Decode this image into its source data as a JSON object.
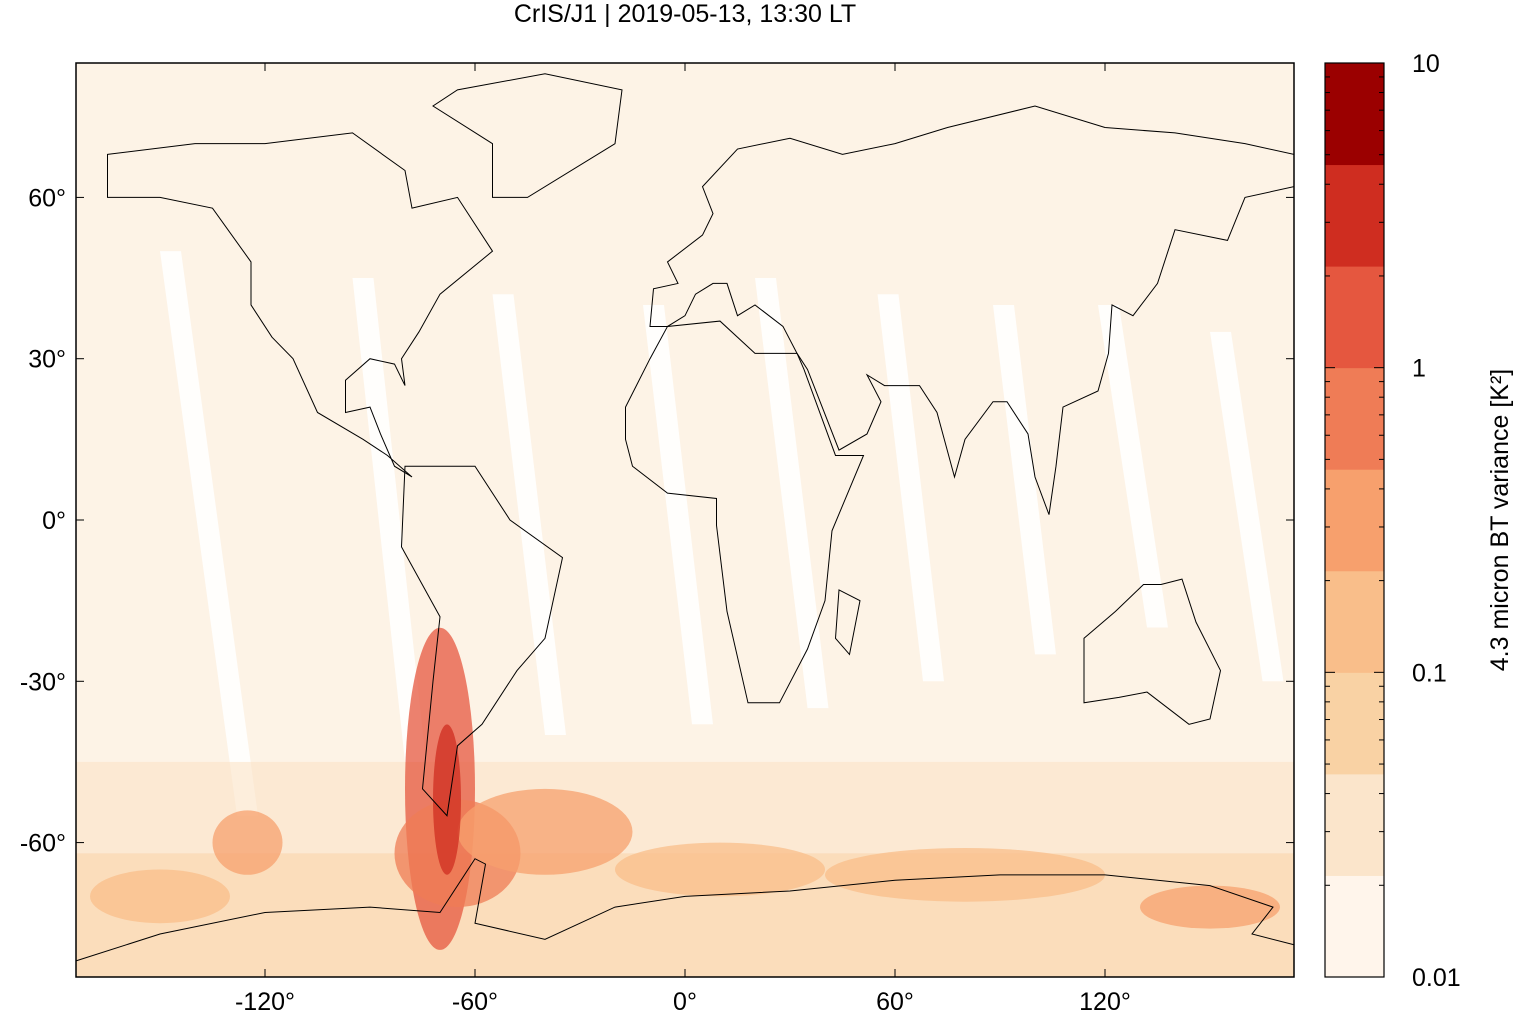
{
  "chart_data": {
    "type": "map",
    "title": "CrIS/J1 | 2019-05-13, 13:30 LT",
    "xlim": [
      -174,
      174
    ],
    "ylim": [
      -85,
      85
    ],
    "xticks": [
      {
        "value": -120,
        "label": "-120°"
      },
      {
        "value": -60,
        "label": "-60°"
      },
      {
        "value": 0,
        "label": "0°"
      },
      {
        "value": 60,
        "label": "60°"
      },
      {
        "value": 120,
        "label": "120°"
      }
    ],
    "yticks": [
      {
        "value": 60,
        "label": "60°"
      },
      {
        "value": 30,
        "label": "30°"
      },
      {
        "value": 0,
        "label": "0°"
      },
      {
        "value": -30,
        "label": "-30°"
      },
      {
        "value": -60,
        "label": "-60°"
      }
    ],
    "colorbar": {
      "label": "4.3 micron BT variance [K²]",
      "log": true,
      "clim": [
        0.01,
        10
      ],
      "ticks": [
        0.01,
        0.1,
        1,
        10
      ],
      "colors": [
        "#fff5eb",
        "#fbe5cb",
        "#f9d2a4",
        "#f9be8a",
        "#f7a06d",
        "#ef7c56",
        "#e5573f",
        "#cf2d20",
        "#9b0000"
      ]
    }
  }
}
